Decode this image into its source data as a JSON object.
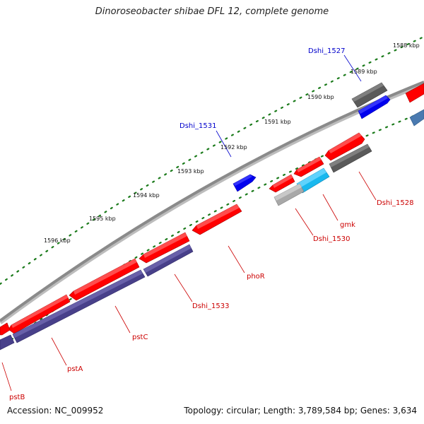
{
  "title": "Dinoroseobacter shibae DFL 12, complete genome",
  "accession": "Accession: NC_009952",
  "summary": "Topology: circular; Length: 3,789,584 bp; Genes: 3,634",
  "colors": {
    "forward_cds": "#ff0000",
    "reverse_cds": "#48408a",
    "backbone": "#8a8a8a",
    "tick_dots": "#1a7a1a",
    "label_forward": "#0000cc",
    "label_reverse": "#cc0000",
    "dark_gray_feature": "#5a5a5a",
    "blue_feature": "#0000ee",
    "cyan_feature": "#19b8ee",
    "light_gray_feature": "#a8a8a8",
    "steel_blue_feature": "#4a7ab0"
  },
  "scale_ticks": [
    {
      "id": "1588",
      "label": "1588 kbp"
    },
    {
      "id": "1589",
      "label": "1589 kbp"
    },
    {
      "id": "1590",
      "label": "1590 kbp"
    },
    {
      "id": "1591",
      "label": "1591 kbp"
    },
    {
      "id": "1592",
      "label": "1592 kbp"
    },
    {
      "id": "1593",
      "label": "1593 kbp"
    },
    {
      "id": "1594",
      "label": "1594 kbp"
    },
    {
      "id": "1595",
      "label": "1595 kbp"
    },
    {
      "id": "1596",
      "label": "1596 kbp"
    }
  ],
  "gene_labels": [
    {
      "id": "dshi-1527",
      "text": "Dshi_1527",
      "strand": "forward"
    },
    {
      "id": "dshi-1531",
      "text": "Dshi_1531",
      "strand": "forward"
    },
    {
      "id": "dshi-1528",
      "text": "Dshi_1528",
      "strand": "reverse"
    },
    {
      "id": "gmk",
      "text": "gmk",
      "strand": "reverse"
    },
    {
      "id": "dshi-1530",
      "text": "Dshi_1530",
      "strand": "reverse"
    },
    {
      "id": "phor",
      "text": "phoR",
      "strand": "reverse"
    },
    {
      "id": "dshi-1533",
      "text": "Dshi_1533",
      "strand": "reverse"
    },
    {
      "id": "pstc",
      "text": "pstC",
      "strand": "reverse"
    },
    {
      "id": "psta",
      "text": "pstA",
      "strand": "reverse"
    },
    {
      "id": "pstb",
      "text": "pstB",
      "strand": "reverse"
    }
  ]
}
